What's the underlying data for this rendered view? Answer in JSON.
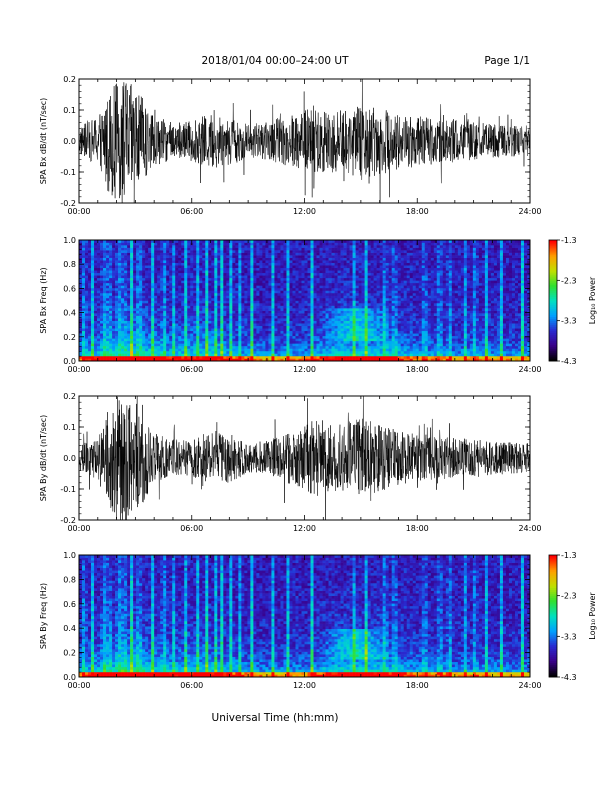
{
  "header": {
    "title": "2018/01/04  00:00–24:00 UT",
    "page": "Page 1/1"
  },
  "xlabel": "Universal Time (hh:mm)",
  "chart_data": [
    {
      "type": "line",
      "id": "bx-timeseries",
      "ylabel": "SPA Bx dB/dt (nT/sec)",
      "xlim": [
        0,
        24
      ],
      "ylim": [
        -0.2,
        0.2
      ],
      "xticks": [
        "00:00",
        "06:00",
        "12:00",
        "18:00",
        "24:00"
      ],
      "yticks": [
        "-0.2",
        "-0.1",
        "0.0",
        "0.1",
        "0.2"
      ],
      "series": [
        {
          "color": "#000000",
          "envelope": {
            "hours": [
              0,
              1,
              1.5,
              2,
              2.5,
              3,
              3.5,
              4,
              5,
              6,
              7,
              8,
              9,
              10,
              11,
              12,
              12.5,
              13,
              14,
              15,
              16,
              17,
              18,
              19,
              20,
              21,
              22,
              23,
              24
            ],
            "amplitude": [
              0.045,
              0.08,
              0.16,
              0.19,
              0.2,
              0.17,
              0.13,
              0.08,
              0.06,
              0.065,
              0.09,
              0.08,
              0.055,
              0.06,
              0.08,
              0.1,
              0.12,
              0.11,
              0.1,
              0.12,
              0.11,
              0.09,
              0.08,
              0.075,
              0.07,
              0.06,
              0.055,
              0.05,
              0.05
            ]
          }
        }
      ]
    },
    {
      "type": "heatmap",
      "id": "bx-spectrogram",
      "ylabel": "SPA Bx Freq (Hz)",
      "xlim": [
        0,
        24
      ],
      "ylim": [
        0,
        1.0
      ],
      "xticks": [
        "00:00",
        "06:00",
        "12:00",
        "18:00",
        "24:00"
      ],
      "yticks": [
        "0.0",
        "0.2",
        "0.4",
        "0.6",
        "0.8",
        "1.0"
      ],
      "colorbar": {
        "label": "Log₁₀ Power",
        "range": [
          -4.3,
          -1.3
        ],
        "ticks": [
          "-1.3",
          "-2.3",
          "-3.3",
          "-4.3"
        ],
        "colors": [
          "#000000",
          "#3a008a",
          "#2a2ad0",
          "#00a0ff",
          "#00e0c0",
          "#30e030",
          "#c0e000",
          "#ffa000",
          "#ff0000"
        ]
      },
      "vertical_bands_hours": [
        0.3,
        0.7,
        1.3,
        1.6,
        2.1,
        2.4,
        2.8,
        3.2,
        3.9,
        4.5,
        5.0,
        5.7,
        6.3,
        6.8,
        7.3,
        7.6,
        8.1,
        8.6,
        9.2,
        10.3,
        11.1,
        12.4,
        14.6,
        15.3,
        16.3,
        16.8,
        18.4,
        19.2,
        19.7,
        20.6,
        21.1,
        21.7,
        22.5,
        23.6
      ],
      "enhancement_14h_hz": [
        0.25,
        0.4
      ]
    },
    {
      "type": "line",
      "id": "by-timeseries",
      "ylabel": "SPA By dB/dt (nT/sec)",
      "xlim": [
        0,
        24
      ],
      "ylim": [
        -0.2,
        0.2
      ],
      "xticks": [
        "00:00",
        "06:00",
        "12:00",
        "18:00",
        "24:00"
      ],
      "yticks": [
        "-0.2",
        "-0.1",
        "0.0",
        "0.1",
        "0.2"
      ],
      "series": [
        {
          "color": "#000000",
          "envelope": {
            "hours": [
              0,
              1,
              1.5,
              2,
              2.5,
              3,
              3.5,
              4,
              5,
              6,
              7,
              8,
              9,
              10,
              11,
              12,
              12.5,
              13,
              14,
              15,
              16,
              17,
              18,
              19,
              20,
              21,
              22,
              23,
              24
            ],
            "amplitude": [
              0.04,
              0.07,
              0.15,
              0.2,
              0.2,
              0.18,
              0.14,
              0.08,
              0.06,
              0.06,
              0.09,
              0.08,
              0.05,
              0.055,
              0.08,
              0.1,
              0.13,
              0.11,
              0.11,
              0.13,
              0.11,
              0.09,
              0.08,
              0.07,
              0.065,
              0.06,
              0.055,
              0.05,
              0.05
            ]
          }
        }
      ]
    },
    {
      "type": "heatmap",
      "id": "by-spectrogram",
      "ylabel": "SPA By Freq (Hz)",
      "xlim": [
        0,
        24
      ],
      "ylim": [
        0,
        1.0
      ],
      "xticks": [
        "00:00",
        "06:00",
        "12:00",
        "18:00",
        "24:00"
      ],
      "yticks": [
        "0.0",
        "0.2",
        "0.4",
        "0.6",
        "0.8",
        "1.0"
      ],
      "colorbar": {
        "label": "Log₁₀ Power",
        "range": [
          -4.3,
          -1.3
        ],
        "ticks": [
          "-1.3",
          "-2.3",
          "-3.3",
          "-4.3"
        ],
        "colors": [
          "#000000",
          "#3a008a",
          "#2a2ad0",
          "#00a0ff",
          "#00e0c0",
          "#30e030",
          "#c0e000",
          "#ffa000",
          "#ff0000"
        ]
      },
      "vertical_bands_hours": [
        0.3,
        0.7,
        1.3,
        1.6,
        2.1,
        2.4,
        2.8,
        3.2,
        3.9,
        4.5,
        5.0,
        5.7,
        6.3,
        6.8,
        7.3,
        7.6,
        8.1,
        8.6,
        9.2,
        10.3,
        11.1,
        12.4,
        14.6,
        15.3,
        16.3,
        16.8,
        18.4,
        19.2,
        19.7,
        20.6,
        21.1,
        21.7,
        22.5,
        23.6
      ],
      "enhancement_14h_hz": [
        0.22,
        0.36
      ]
    }
  ]
}
